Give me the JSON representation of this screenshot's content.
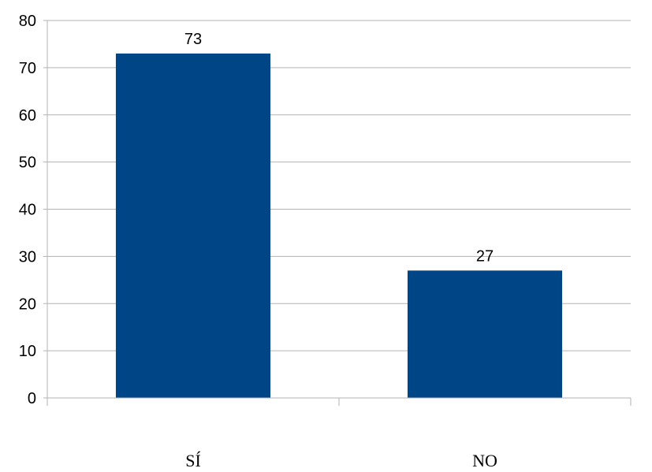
{
  "chart_data": {
    "type": "bar",
    "categories": [
      "SÍ",
      "NO"
    ],
    "values": [
      73,
      27
    ],
    "data_labels": [
      "73",
      "27"
    ],
    "title": "",
    "xlabel": "",
    "ylabel": "",
    "ylim": [
      0,
      80
    ],
    "yticks": [
      0,
      10,
      20,
      30,
      40,
      50,
      60,
      70,
      80
    ],
    "grid": true,
    "legend": "none",
    "bar_color": "#004586"
  }
}
